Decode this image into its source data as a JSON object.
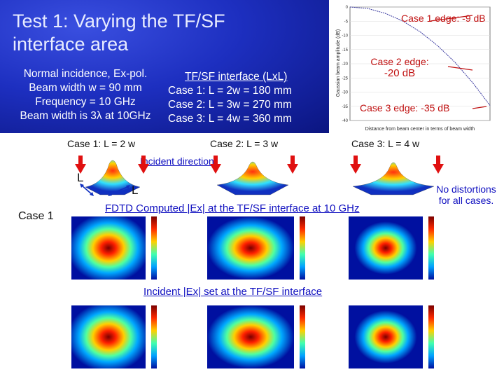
{
  "title": "Test 1: Varying the TF/SF\ninterface area",
  "params": {
    "lines": [
      "Normal incidence, Ex-pol.",
      "Beam width w  = 90 mm",
      "Frequency = 10 GHz",
      "Beam width is 3λ at 10GHz"
    ]
  },
  "tfsf": {
    "title": "TF/SF interface (LxL)",
    "cases": [
      "Case 1: L = 2w = 180 mm",
      "Case 2: L = 3w = 270 mm",
      "Case 3: L = 4w = 360 mm"
    ]
  },
  "chart_data": {
    "type": "line",
    "title": "",
    "xlabel": "Distance from beam center in terms of beam width",
    "ylabel": "Gaussian beam amplitude (dB)",
    "yticks": [
      "0",
      "-5",
      "-10",
      "-15",
      "-20",
      "-25",
      "-30",
      "-35",
      "-40"
    ],
    "ylim": [
      -40,
      0
    ],
    "xlim": [
      0,
      2
    ],
    "series": [
      {
        "x": [
          0,
          0.25,
          0.5,
          0.75,
          1.0,
          1.25,
          1.5,
          1.75,
          2.0
        ],
        "values": [
          0,
          -0.5,
          -2.2,
          -4.9,
          -8.7,
          -13.6,
          -19.5,
          -26.6,
          -34.7
        ]
      }
    ],
    "annotations": [
      "Case 1 edge: -9 dB",
      "Case 2 edge:",
      "-20 dB",
      "Case 3 edge: -35 dB"
    ],
    "line_color": "#3a3aa0",
    "annotation_color": "#c01010"
  },
  "case_labels": [
    "Case 1: L = 2 w",
    "Case 2: L = 3 w",
    "Case 3: L = 4 w"
  ],
  "incident_direction": "Incident direction",
  "dim_L_left": "L",
  "dim_L_right": "L",
  "row_label": "Case 1",
  "fdtd_label": "FDTD Computed |Ex| at the TF/SF interface at 10 GHz",
  "incident_label": "Incident |Ex| set at the TF/SF interface",
  "no_distortion": "No distortions\nfor all cases.",
  "colors": {
    "arrow": "#e01010",
    "header": "#1d2fc0",
    "label_text": "#1010c0"
  }
}
